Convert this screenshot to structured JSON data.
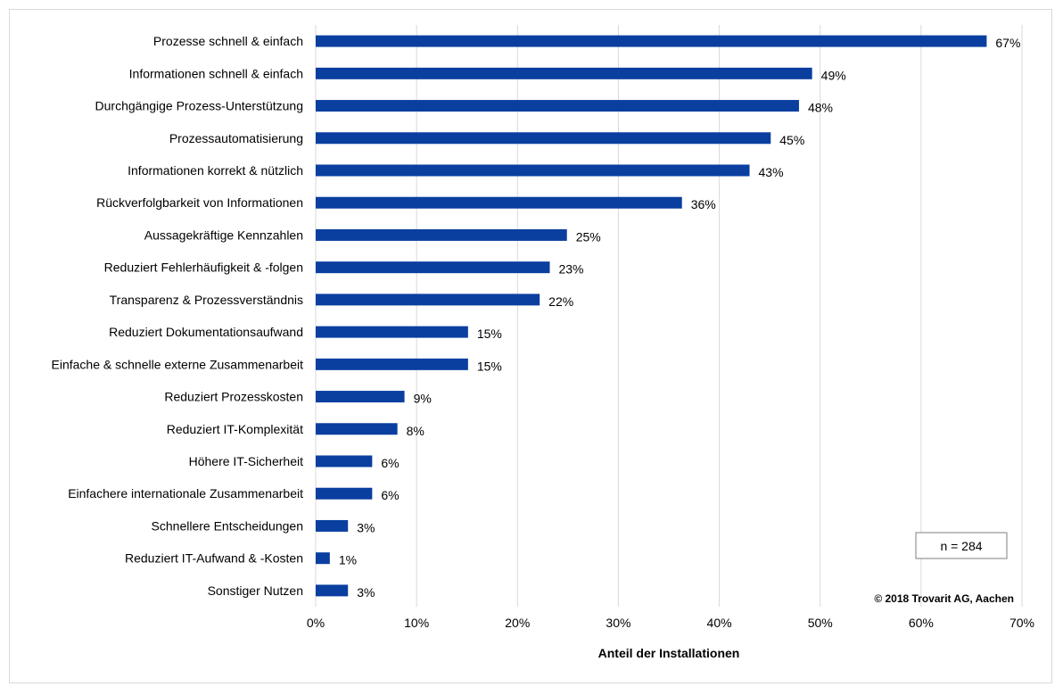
{
  "chart_data": {
    "type": "bar",
    "orientation": "horizontal",
    "categories": [
      "Prozesse schnell & einfach",
      "Informationen schnell & einfach",
      "Durchgängige Prozess-Unterstützung",
      "Prozessautomatisierung",
      "Informationen korrekt & nützlich",
      "Rückverfolgbarkeit von Informationen",
      "Aussagekräftige Kennzahlen",
      "Reduziert Fehlerhäufigkeit & -folgen",
      "Transparenz & Prozessverständnis",
      "Reduziert Dokumentationsaufwand",
      "Einfache & schnelle externe Zusammenarbeit",
      "Reduziert Prozesskosten",
      "Reduziert IT-Komplexität",
      "Höhere IT-Sicherheit",
      "Einfachere internationale Zusammenarbeit",
      "Schnellere Entscheidungen",
      "Reduziert IT-Aufwand & -Kosten",
      "Sonstiger Nutzen"
    ],
    "values": [
      66.5,
      49.2,
      47.9,
      45.1,
      43.0,
      36.3,
      24.9,
      23.2,
      22.2,
      15.1,
      15.1,
      8.8,
      8.1,
      5.6,
      5.6,
      3.2,
      1.4,
      3.2
    ],
    "value_labels": [
      "67%",
      "49%",
      "48%",
      "45%",
      "43%",
      "36%",
      "25%",
      "23%",
      "22%",
      "15%",
      "15%",
      "9%",
      "8%",
      "6%",
      "6%",
      "3%",
      "1%",
      "3%"
    ],
    "xlabel": "Anteil der Installationen",
    "xlim": [
      0,
      70
    ],
    "xticks": [
      0,
      10,
      20,
      30,
      40,
      50,
      60,
      70
    ],
    "xtick_labels": [
      "0%",
      "10%",
      "20%",
      "30%",
      "40%",
      "50%",
      "60%",
      "70%"
    ],
    "grid": "vertical",
    "bar_color": "#0a3fa0",
    "grid_color": "#d9d9d9",
    "annotation_n": "n = 284",
    "copyright": "© 2018 Trovarit AG, Aachen"
  }
}
